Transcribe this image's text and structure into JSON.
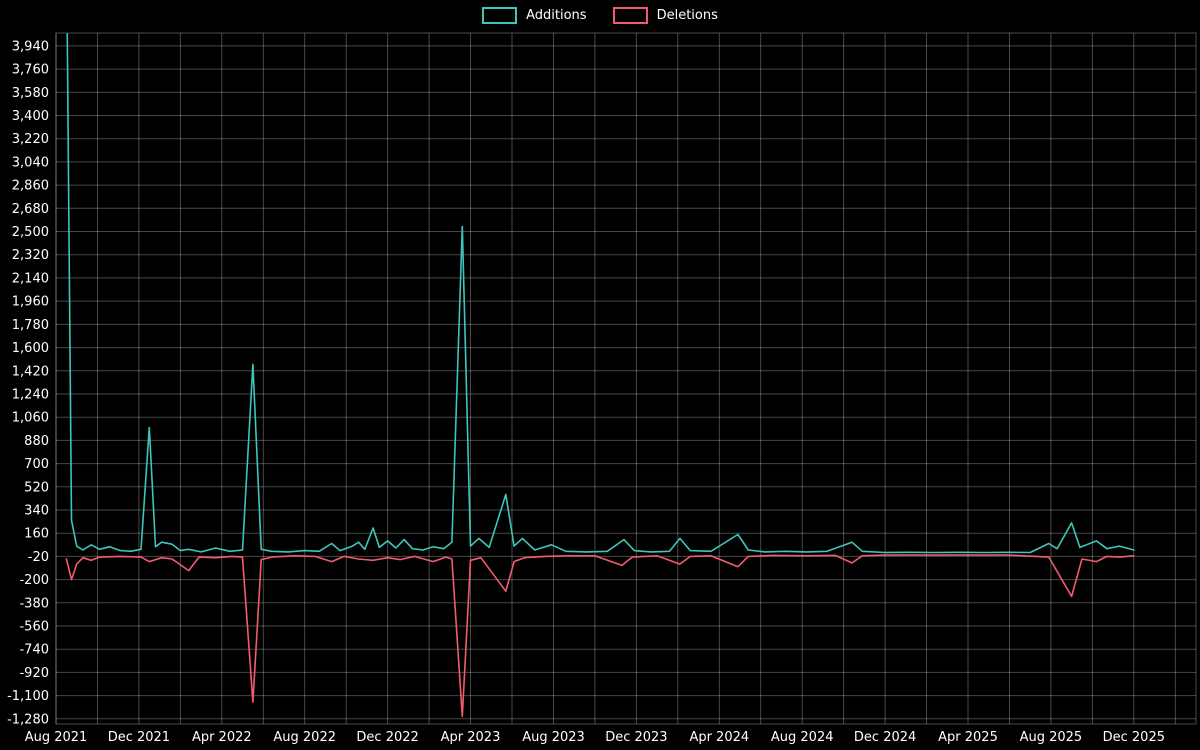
{
  "theme": {
    "background": "#000000",
    "text_color": "#ffffff",
    "grid_color": "rgba(255,255,255,0.28)"
  },
  "legend": {
    "items": [
      {
        "label": "Additions",
        "color": "#3fc5bb"
      },
      {
        "label": "Deletions",
        "color": "#f25c6e"
      }
    ]
  },
  "chart_data": {
    "type": "line",
    "title": "",
    "xlabel": "",
    "ylabel": "",
    "x_unit": "months since Aug 2021 (weekly data points)",
    "x_domain": [
      0,
      55
    ],
    "ylim": [
      -1320,
      4040
    ],
    "x_tick_step_months": 4,
    "x_tick_labels": [
      "Aug 2021",
      "Dec 2021",
      "Apr 2022",
      "Aug 2022",
      "Dec 2022",
      "Apr 2023",
      "Aug 2023",
      "Dec 2023",
      "Apr 2024",
      "Aug 2024",
      "Dec 2024",
      "Apr 2025",
      "Aug 2025",
      "Dec 2025"
    ],
    "y_ticks": [
      3940,
      3760,
      3580,
      3400,
      3220,
      3040,
      2860,
      2680,
      2500,
      2320,
      2140,
      1960,
      1780,
      1600,
      1420,
      1240,
      1060,
      880,
      700,
      520,
      340,
      160,
      -20,
      -200,
      -380,
      -560,
      -740,
      -920,
      -1100,
      -1280
    ],
    "grid": {
      "on": true,
      "color": "rgba(255,255,255,0.28)",
      "x_step_months": 2
    },
    "legend_position": "top-center",
    "series": [
      {
        "name": "Additions",
        "color": "#3fc5bb",
        "points": [
          [
            0.5,
            4800
          ],
          [
            0.75,
            260
          ],
          [
            1.0,
            60
          ],
          [
            1.3,
            30
          ],
          [
            1.7,
            70
          ],
          [
            2.1,
            35
          ],
          [
            2.6,
            55
          ],
          [
            3.1,
            25
          ],
          [
            3.6,
            20
          ],
          [
            4.1,
            35
          ],
          [
            4.5,
            980
          ],
          [
            4.8,
            55
          ],
          [
            5.1,
            90
          ],
          [
            5.6,
            75
          ],
          [
            6.0,
            25
          ],
          [
            6.4,
            35
          ],
          [
            7.0,
            15
          ],
          [
            7.7,
            45
          ],
          [
            8.4,
            20
          ],
          [
            9.0,
            30
          ],
          [
            9.5,
            1470
          ],
          [
            9.9,
            35
          ],
          [
            10.4,
            20
          ],
          [
            11.2,
            15
          ],
          [
            12.0,
            25
          ],
          [
            12.7,
            20
          ],
          [
            13.3,
            80
          ],
          [
            13.7,
            25
          ],
          [
            14.3,
            60
          ],
          [
            14.6,
            90
          ],
          [
            14.9,
            35
          ],
          [
            15.3,
            200
          ],
          [
            15.6,
            50
          ],
          [
            16.0,
            100
          ],
          [
            16.4,
            45
          ],
          [
            16.8,
            110
          ],
          [
            17.2,
            40
          ],
          [
            17.7,
            30
          ],
          [
            18.2,
            55
          ],
          [
            18.7,
            40
          ],
          [
            19.1,
            90
          ],
          [
            19.6,
            2540
          ],
          [
            20.0,
            60
          ],
          [
            20.4,
            120
          ],
          [
            20.9,
            50
          ],
          [
            21.7,
            460
          ],
          [
            22.1,
            60
          ],
          [
            22.5,
            120
          ],
          [
            23.1,
            30
          ],
          [
            23.9,
            70
          ],
          [
            24.6,
            20
          ],
          [
            25.6,
            15
          ],
          [
            26.6,
            20
          ],
          [
            27.4,
            110
          ],
          [
            27.9,
            25
          ],
          [
            28.7,
            15
          ],
          [
            29.6,
            20
          ],
          [
            30.1,
            120
          ],
          [
            30.6,
            25
          ],
          [
            31.6,
            20
          ],
          [
            32.9,
            150
          ],
          [
            33.4,
            30
          ],
          [
            34.2,
            15
          ],
          [
            35.2,
            20
          ],
          [
            36.2,
            15
          ],
          [
            37.2,
            20
          ],
          [
            38.4,
            90
          ],
          [
            38.9,
            20
          ],
          [
            40.0,
            10
          ],
          [
            41.2,
            12
          ],
          [
            42.4,
            10
          ],
          [
            43.6,
            12
          ],
          [
            44.8,
            10
          ],
          [
            46.0,
            12
          ],
          [
            47.0,
            10
          ],
          [
            47.9,
            80
          ],
          [
            48.3,
            40
          ],
          [
            49.0,
            240
          ],
          [
            49.4,
            50
          ],
          [
            50.2,
            100
          ],
          [
            50.7,
            40
          ],
          [
            51.3,
            60
          ],
          [
            52.0,
            30
          ]
        ]
      },
      {
        "name": "Deletions",
        "color": "#f25c6e",
        "points": [
          [
            0.5,
            -40
          ],
          [
            0.75,
            -200
          ],
          [
            1.0,
            -80
          ],
          [
            1.3,
            -30
          ],
          [
            1.7,
            -50
          ],
          [
            2.1,
            -25
          ],
          [
            3.1,
            -20
          ],
          [
            4.1,
            -25
          ],
          [
            4.5,
            -60
          ],
          [
            5.1,
            -30
          ],
          [
            5.6,
            -40
          ],
          [
            6.4,
            -130
          ],
          [
            6.9,
            -25
          ],
          [
            7.7,
            -30
          ],
          [
            8.5,
            -20
          ],
          [
            9.0,
            -25
          ],
          [
            9.5,
            -1150
          ],
          [
            9.9,
            -45
          ],
          [
            10.4,
            -25
          ],
          [
            11.5,
            -15
          ],
          [
            12.5,
            -20
          ],
          [
            13.3,
            -60
          ],
          [
            13.9,
            -20
          ],
          [
            14.6,
            -40
          ],
          [
            15.3,
            -50
          ],
          [
            16.0,
            -30
          ],
          [
            16.6,
            -45
          ],
          [
            17.3,
            -20
          ],
          [
            18.2,
            -60
          ],
          [
            18.8,
            -25
          ],
          [
            19.1,
            -40
          ],
          [
            19.6,
            -1260
          ],
          [
            20.0,
            -50
          ],
          [
            20.5,
            -30
          ],
          [
            21.7,
            -290
          ],
          [
            22.1,
            -60
          ],
          [
            22.6,
            -30
          ],
          [
            23.6,
            -20
          ],
          [
            24.6,
            -15
          ],
          [
            26.0,
            -15
          ],
          [
            27.3,
            -90
          ],
          [
            27.8,
            -25
          ],
          [
            29.0,
            -15
          ],
          [
            30.1,
            -80
          ],
          [
            30.6,
            -20
          ],
          [
            31.6,
            -15
          ],
          [
            32.9,
            -100
          ],
          [
            33.4,
            -20
          ],
          [
            34.6,
            -12
          ],
          [
            36.2,
            -15
          ],
          [
            37.6,
            -12
          ],
          [
            38.4,
            -70
          ],
          [
            38.9,
            -15
          ],
          [
            40.0,
            -10
          ],
          [
            42.0,
            -10
          ],
          [
            44.0,
            -10
          ],
          [
            46.0,
            -10
          ],
          [
            47.9,
            -25
          ],
          [
            49.0,
            -330
          ],
          [
            49.5,
            -40
          ],
          [
            50.2,
            -60
          ],
          [
            50.7,
            -20
          ],
          [
            51.3,
            -25
          ],
          [
            52.0,
            -15
          ]
        ]
      }
    ]
  }
}
